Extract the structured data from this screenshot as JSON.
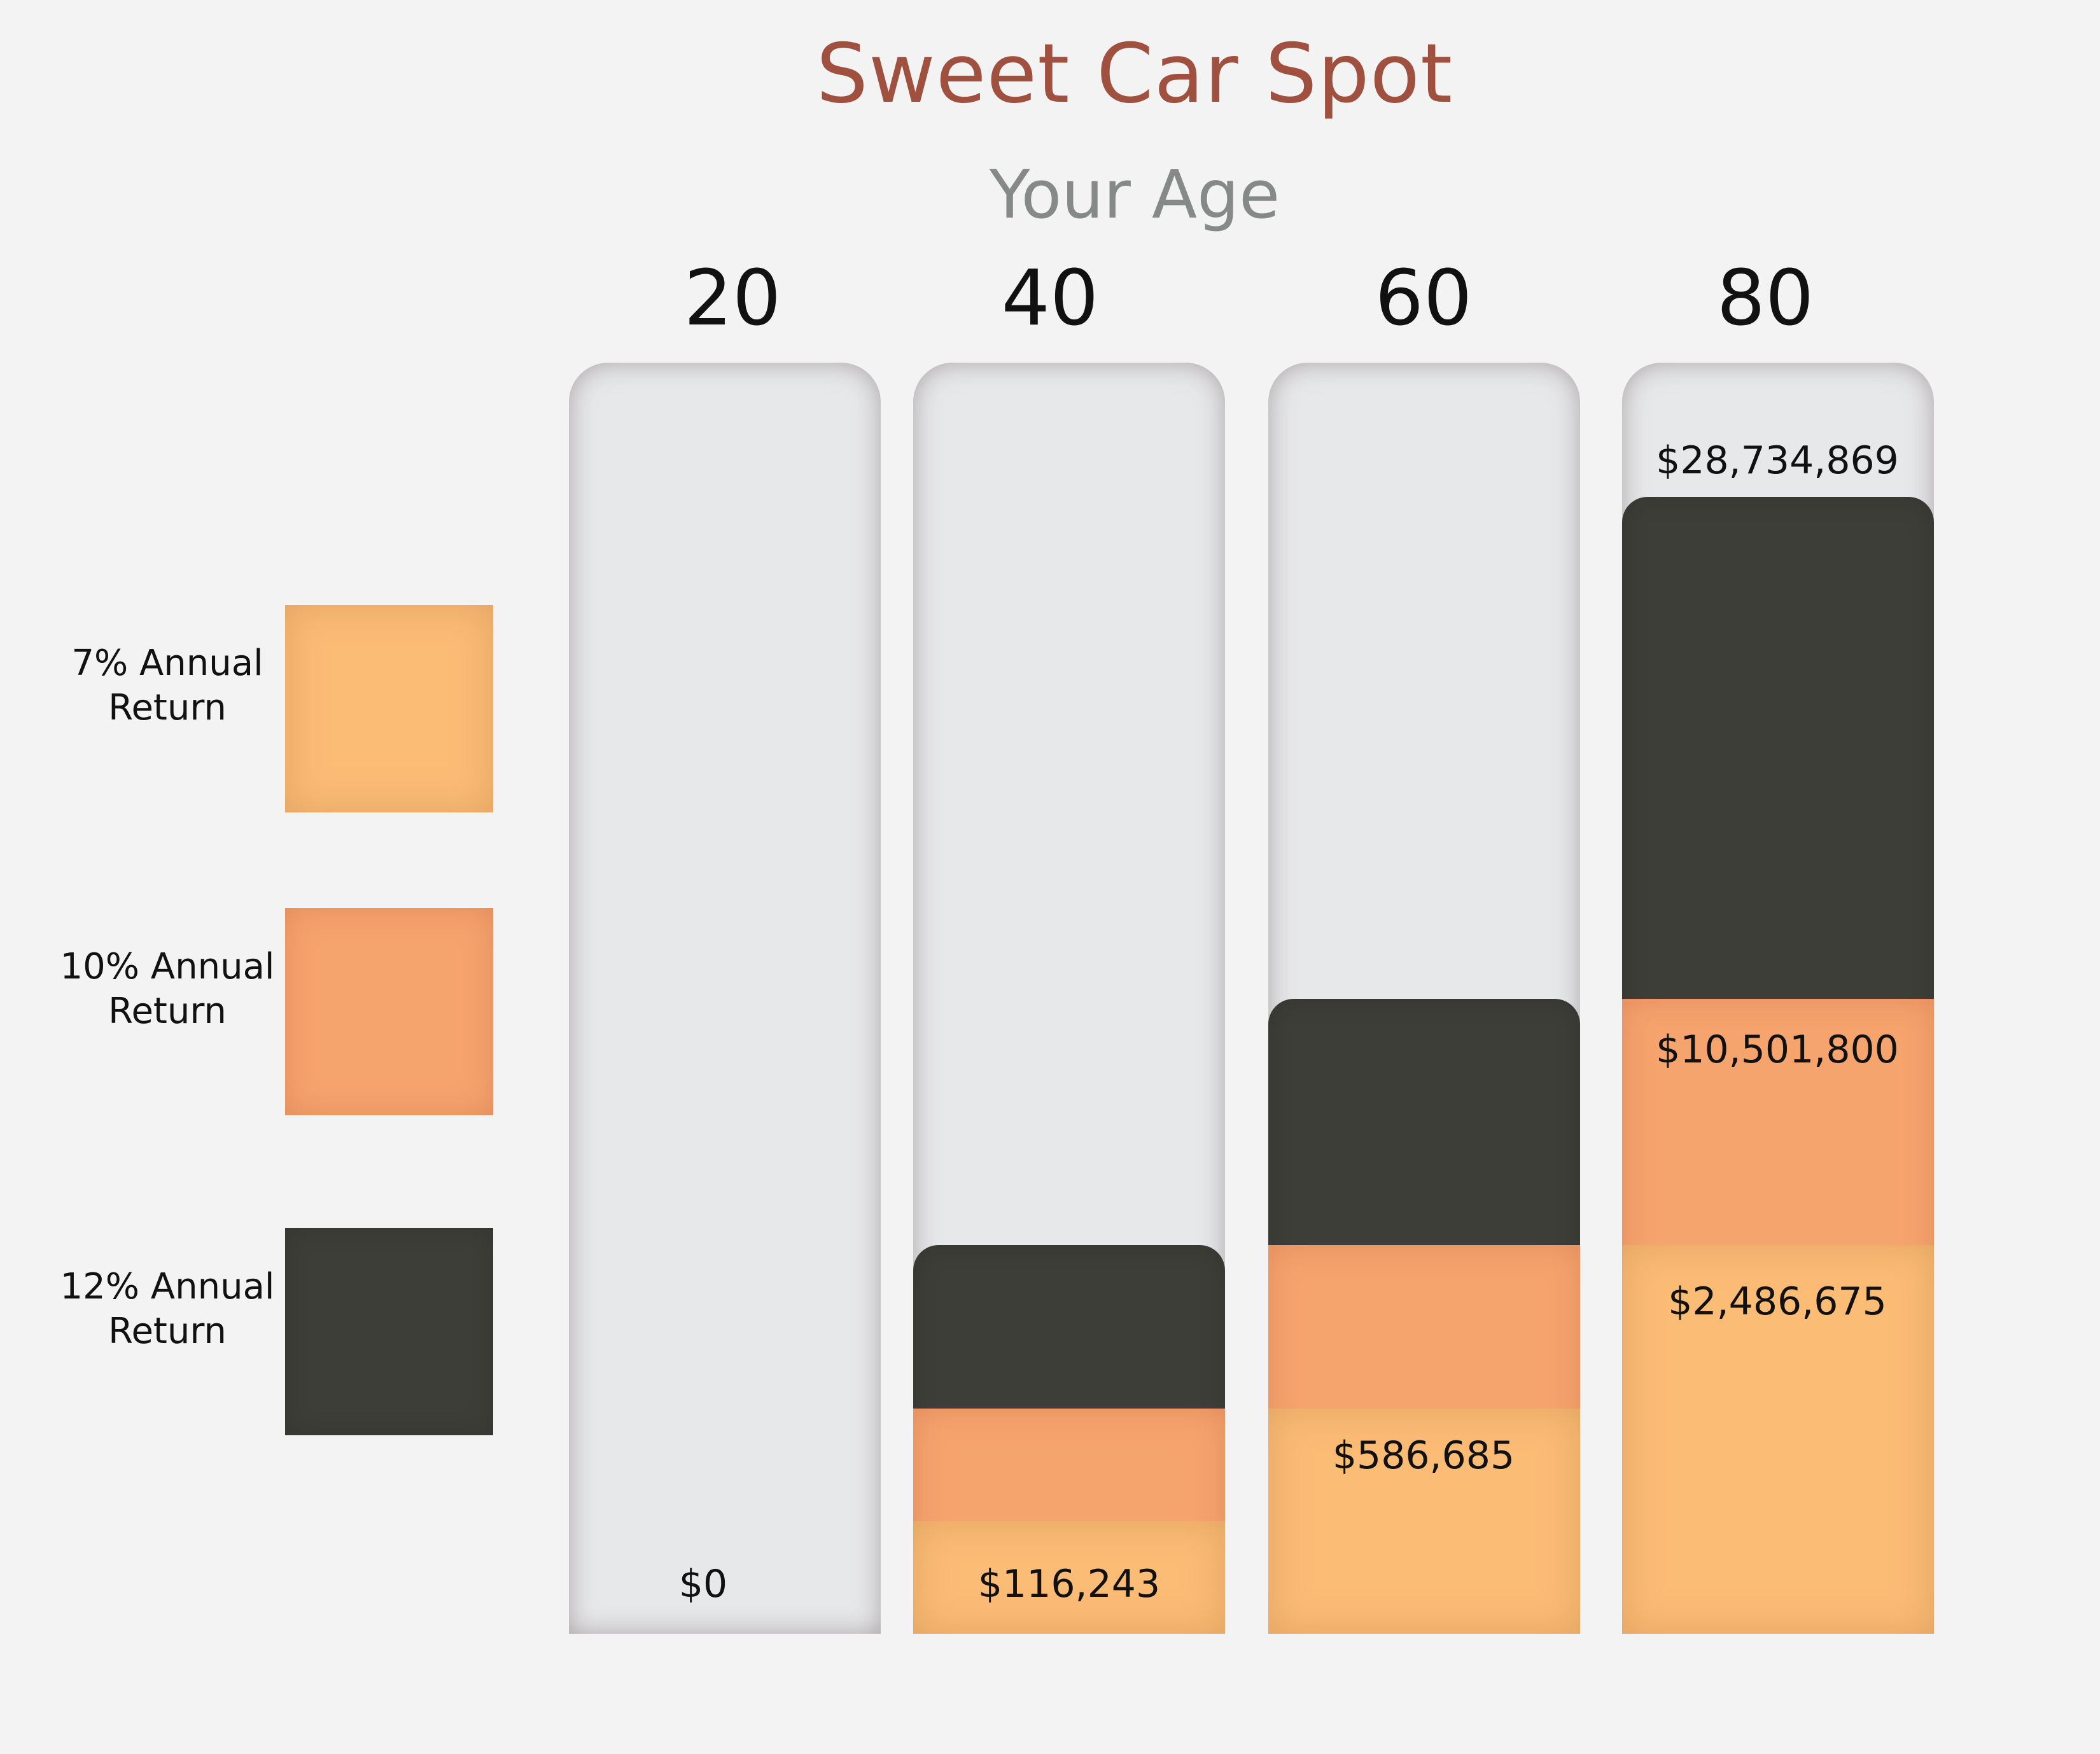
{
  "chart_data": {
    "type": "bar",
    "stacked": true,
    "title": "Sweet Car Spot",
    "xlabel": "Your Age",
    "ylabel": "",
    "categories": [
      "20",
      "40",
      "60",
      "80"
    ],
    "series": [
      {
        "name": "7% Annual Return",
        "color": "#fbbc76",
        "values": [
          0,
          116243,
          586685,
          2486675
        ]
      },
      {
        "name": "10% Annual Return",
        "color": "#f6a46e",
        "values": [
          0,
          null,
          null,
          10501800
        ]
      },
      {
        "name": "12% Annual Return",
        "color": "#3e3e39",
        "values": [
          0,
          null,
          null,
          28734869
        ]
      }
    ],
    "data_labels": [
      "$0",
      "$116,243",
      "$586,685",
      "$28,734,869",
      "$10,501,800",
      "$2,486,675"
    ],
    "legend": [
      {
        "line1": "7% Annual",
        "line2": "Return"
      },
      {
        "line1": "10% Annual",
        "line2": "Return"
      },
      {
        "line1": "12% Annual",
        "line2": "Return"
      }
    ],
    "legend_position": "left"
  }
}
